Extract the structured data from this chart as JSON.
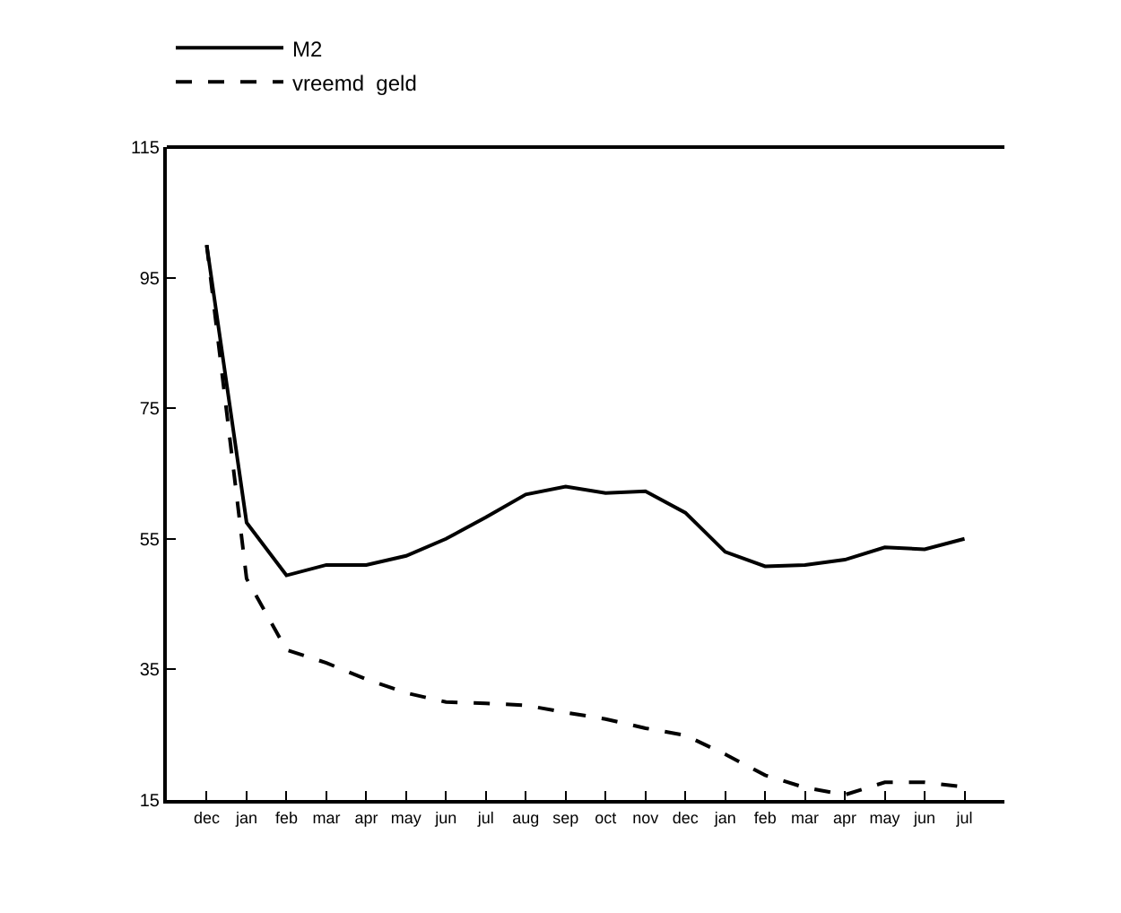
{
  "chart_data": {
    "type": "line",
    "categories": [
      "dec",
      "jan",
      "feb",
      "mar",
      "apr",
      "may",
      "jun",
      "jul",
      "aug",
      "sep",
      "oct",
      "nov",
      "dec",
      "jan",
      "feb",
      "mar",
      "apr",
      "may",
      "jun",
      "jul"
    ],
    "series": [
      {
        "name": "M2",
        "color": "#000000",
        "line_style": "solid",
        "values": [
          100,
          57.5,
          49.4,
          51,
          51,
          52.4,
          55,
          58.3,
          61.8,
          63,
          62,
          62.3,
          59,
          53,
          50.8,
          51,
          51.8,
          53.7,
          53.4,
          55
        ]
      },
      {
        "name": "vreemd  geld",
        "color": "#000000",
        "line_style": "dashed",
        "values": [
          100,
          48.9,
          38,
          36,
          33.5,
          31.4,
          30,
          29.8,
          29.5,
          28.4,
          27.4,
          26,
          24.9,
          22,
          18.8,
          16.9,
          15.8,
          17.7,
          17.7,
          17
        ]
      }
    ],
    "ylim": [
      15,
      115
    ],
    "yticks": [
      15,
      35,
      55,
      75,
      95,
      115
    ],
    "grid": false,
    "legend": "top",
    "marker": "none"
  }
}
